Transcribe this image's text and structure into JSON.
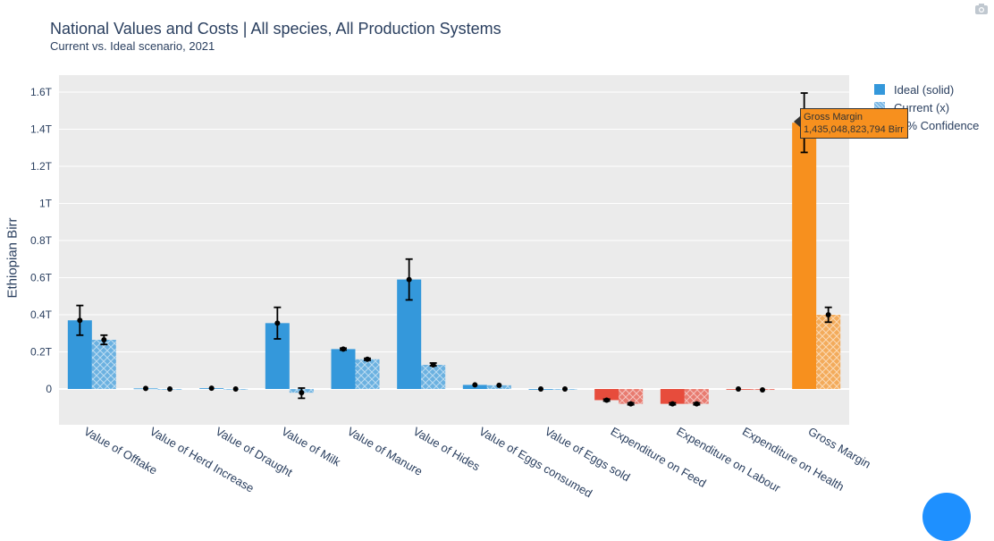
{
  "header": {
    "title": "National Values and Costs | All species, All Production Systems",
    "subtitle": "Current vs. Ideal scenario, 2021"
  },
  "toolbar": {
    "camera_icon": "camera-icon"
  },
  "legend": {
    "items": [
      {
        "label": "Ideal (solid)",
        "color": "#3498db"
      },
      {
        "label": "Current (x)",
        "color": "#3498db"
      },
      {
        "label": "95% Confidence",
        "color": "#000000"
      }
    ]
  },
  "tooltip": {
    "label": "Gross Margin",
    "value": "1,435,048,823,794 Birr"
  },
  "colors": {
    "blue": "#3498db",
    "red": "#e74c3c",
    "orange": "#f7901e",
    "plot_bg": "#ebebeb"
  },
  "chart_data": {
    "type": "bar",
    "title": "National Values and Costs | All species, All Production Systems",
    "subtitle": "Current vs. Ideal scenario, 2021",
    "xlabel": "",
    "ylabel": "Ethiopian Birr",
    "ylim": [
      -0.2,
      1.62
    ],
    "y_unit": "T",
    "yticks": [
      0,
      0.2,
      0.4,
      0.6,
      0.8,
      1.0,
      1.2,
      1.4,
      1.6
    ],
    "ytick_labels": [
      "0",
      "0.2T",
      "0.4T",
      "0.6T",
      "0.8T",
      "1T",
      "1.2T",
      "1.4T",
      "1.6T"
    ],
    "grid": true,
    "legend_position": "top-right",
    "categories": [
      "Value of Offtake",
      "Value of Herd Increase",
      "Value of Draught",
      "Value of Milk",
      "Value of Manure",
      "Value of Hides",
      "Value of Eggs consumed",
      "Value of Eggs sold",
      "Expenditure on Feed",
      "Expenditure on Labour",
      "Expenditure on Health",
      "Gross Margin"
    ],
    "category_colors": [
      "blue",
      "blue",
      "blue",
      "blue",
      "blue",
      "blue",
      "blue",
      "blue",
      "red",
      "red",
      "red",
      "orange"
    ],
    "series": [
      {
        "name": "Ideal (solid)",
        "values": [
          0.37,
          0.003,
          0.004,
          0.355,
          0.215,
          0.59,
          0.022,
          0.0,
          -0.06,
          -0.08,
          0.0,
          1.435
        ],
        "err_low": [
          0.29,
          0.0,
          0.0,
          0.27,
          0.21,
          0.48,
          0.018,
          0.0,
          -0.065,
          -0.085,
          0.0,
          1.275
        ],
        "err_high": [
          0.45,
          0.006,
          0.007,
          0.44,
          0.22,
          0.7,
          0.026,
          0.0,
          -0.055,
          -0.075,
          0.0,
          1.595
        ]
      },
      {
        "name": "Current (x)",
        "values": [
          0.265,
          0.0,
          0.0,
          -0.02,
          0.16,
          0.13,
          0.02,
          0.0,
          -0.08,
          -0.08,
          -0.005,
          0.4
        ],
        "err_low": [
          0.24,
          0.0,
          0.0,
          -0.05,
          0.155,
          0.125,
          0.016,
          0.0,
          -0.085,
          -0.085,
          -0.008,
          0.36
        ],
        "err_high": [
          0.29,
          0.0,
          0.0,
          0.005,
          0.165,
          0.14,
          0.024,
          0.0,
          -0.075,
          -0.075,
          -0.002,
          0.44
        ]
      }
    ]
  }
}
